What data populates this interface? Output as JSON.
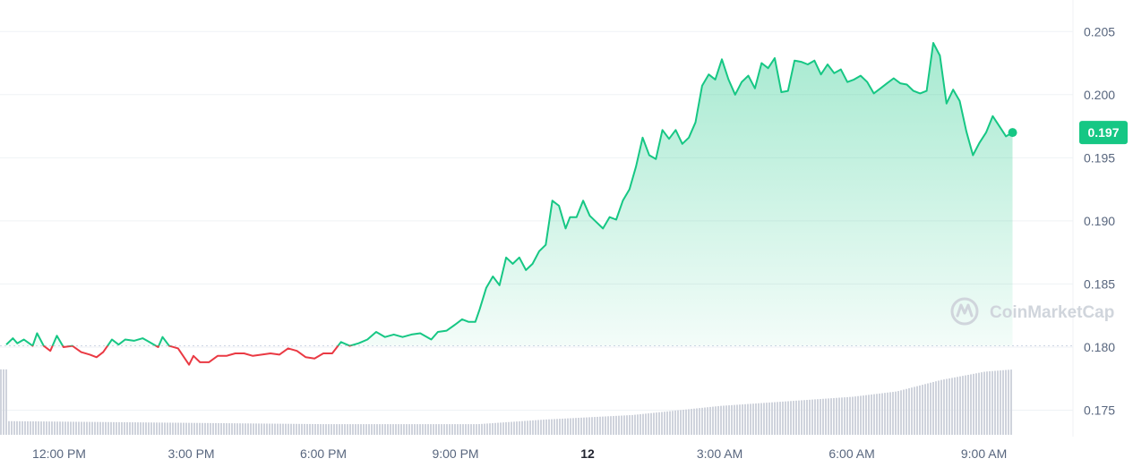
{
  "chart_data": {
    "type": "line",
    "y_ticks": [
      "0.205",
      "0.200",
      "0.195",
      "0.190",
      "0.185",
      "0.180",
      "0.175"
    ],
    "ylim": [
      0.1705,
      0.2075
    ],
    "reference_price": 0.1801,
    "x_ticks": [
      "12:00 PM",
      "3:00 PM",
      "6:00 PM",
      "9:00 PM",
      "12",
      "3:00 AM",
      "6:00 AM",
      "9:00 AM"
    ],
    "x_tick_hours": [
      0,
      3,
      6,
      9,
      12,
      15,
      18,
      21
    ],
    "bold_x_tick": "12",
    "x_start_hour": -1.2,
    "price_series": [
      [
        -1.2,
        0.1802
      ],
      [
        -1.05,
        0.1807
      ],
      [
        -0.95,
        0.1803
      ],
      [
        -0.8,
        0.1806
      ],
      [
        -0.6,
        0.1801
      ],
      [
        -0.5,
        0.1811
      ],
      [
        -0.35,
        0.1801
      ],
      [
        -0.2,
        0.1797
      ],
      [
        -0.05,
        0.1809
      ],
      [
        0.1,
        0.18
      ],
      [
        0.3,
        0.1801
      ],
      [
        0.5,
        0.1796
      ],
      [
        0.7,
        0.1794
      ],
      [
        0.85,
        0.1792
      ],
      [
        1.0,
        0.1796
      ],
      [
        1.2,
        0.1806
      ],
      [
        1.35,
        0.1802
      ],
      [
        1.5,
        0.1806
      ],
      [
        1.7,
        0.1805
      ],
      [
        1.9,
        0.1807
      ],
      [
        2.1,
        0.1803
      ],
      [
        2.25,
        0.18
      ],
      [
        2.35,
        0.1808
      ],
      [
        2.5,
        0.1801
      ],
      [
        2.7,
        0.1799
      ],
      [
        2.95,
        0.1786
      ],
      [
        3.05,
        0.1793
      ],
      [
        3.2,
        0.1788
      ],
      [
        3.4,
        0.1788
      ],
      [
        3.6,
        0.1793
      ],
      [
        3.8,
        0.1793
      ],
      [
        4.0,
        0.1795
      ],
      [
        4.2,
        0.1795
      ],
      [
        4.4,
        0.1793
      ],
      [
        4.6,
        0.1794
      ],
      [
        4.8,
        0.1795
      ],
      [
        5.0,
        0.1794
      ],
      [
        5.2,
        0.1799
      ],
      [
        5.4,
        0.1797
      ],
      [
        5.6,
        0.1792
      ],
      [
        5.8,
        0.1791
      ],
      [
        6.0,
        0.1795
      ],
      [
        6.2,
        0.1795
      ],
      [
        6.4,
        0.1804
      ],
      [
        6.6,
        0.1801
      ],
      [
        6.8,
        0.1803
      ],
      [
        7.0,
        0.1806
      ],
      [
        7.2,
        0.1812
      ],
      [
        7.4,
        0.1808
      ],
      [
        7.6,
        0.181
      ],
      [
        7.8,
        0.1808
      ],
      [
        8.0,
        0.181
      ],
      [
        8.2,
        0.1811
      ],
      [
        8.45,
        0.1806
      ],
      [
        8.6,
        0.1812
      ],
      [
        8.8,
        0.1813
      ],
      [
        9.0,
        0.1818
      ],
      [
        9.15,
        0.1822
      ],
      [
        9.3,
        0.182
      ],
      [
        9.45,
        0.182
      ],
      [
        9.55,
        0.183
      ],
      [
        9.7,
        0.1847
      ],
      [
        9.85,
        0.1856
      ],
      [
        10.0,
        0.1849
      ],
      [
        10.15,
        0.1871
      ],
      [
        10.3,
        0.1866
      ],
      [
        10.45,
        0.1871
      ],
      [
        10.6,
        0.1861
      ],
      [
        10.75,
        0.1866
      ],
      [
        10.9,
        0.1876
      ],
      [
        11.05,
        0.1881
      ],
      [
        11.2,
        0.1916
      ],
      [
        11.35,
        0.1912
      ],
      [
        11.5,
        0.1894
      ],
      [
        11.6,
        0.1903
      ],
      [
        11.75,
        0.1903
      ],
      [
        11.9,
        0.1916
      ],
      [
        12.05,
        0.1904
      ],
      [
        12.2,
        0.1899
      ],
      [
        12.35,
        0.1894
      ],
      [
        12.5,
        0.1903
      ],
      [
        12.65,
        0.1901
      ],
      [
        12.8,
        0.1916
      ],
      [
        12.95,
        0.1925
      ],
      [
        13.1,
        0.1943
      ],
      [
        13.25,
        0.1966
      ],
      [
        13.4,
        0.1952
      ],
      [
        13.55,
        0.1949
      ],
      [
        13.7,
        0.1972
      ],
      [
        13.85,
        0.1965
      ],
      [
        14.0,
        0.1972
      ],
      [
        14.15,
        0.1961
      ],
      [
        14.3,
        0.1966
      ],
      [
        14.45,
        0.1978
      ],
      [
        14.6,
        0.2007
      ],
      [
        14.75,
        0.2016
      ],
      [
        14.9,
        0.2012
      ],
      [
        15.05,
        0.2028
      ],
      [
        15.2,
        0.2012
      ],
      [
        15.35,
        0.2
      ],
      [
        15.5,
        0.201
      ],
      [
        15.65,
        0.2015
      ],
      [
        15.8,
        0.2005
      ],
      [
        15.95,
        0.2025
      ],
      [
        16.1,
        0.2021
      ],
      [
        16.25,
        0.2029
      ],
      [
        16.4,
        0.2002
      ],
      [
        16.55,
        0.2003
      ],
      [
        16.7,
        0.2027
      ],
      [
        16.85,
        0.2026
      ],
      [
        17.0,
        0.2024
      ],
      [
        17.15,
        0.2027
      ],
      [
        17.3,
        0.2016
      ],
      [
        17.45,
        0.2024
      ],
      [
        17.6,
        0.2017
      ],
      [
        17.75,
        0.202
      ],
      [
        17.9,
        0.201
      ],
      [
        18.05,
        0.2012
      ],
      [
        18.2,
        0.2015
      ],
      [
        18.35,
        0.201
      ],
      [
        18.5,
        0.2001
      ],
      [
        18.65,
        0.2005
      ],
      [
        18.8,
        0.2009
      ],
      [
        18.95,
        0.2013
      ],
      [
        19.1,
        0.2009
      ],
      [
        19.25,
        0.2008
      ],
      [
        19.4,
        0.2003
      ],
      [
        19.55,
        0.2001
      ],
      [
        19.7,
        0.2003
      ],
      [
        19.85,
        0.2041
      ],
      [
        20.0,
        0.2031
      ],
      [
        20.15,
        0.1993
      ],
      [
        20.3,
        0.2004
      ],
      [
        20.45,
        0.1995
      ],
      [
        20.6,
        0.1971
      ],
      [
        20.75,
        0.1952
      ],
      [
        20.9,
        0.1962
      ],
      [
        21.05,
        0.197
      ],
      [
        21.2,
        0.1983
      ],
      [
        21.35,
        0.1975
      ],
      [
        21.5,
        0.1967
      ],
      [
        21.65,
        0.197
      ]
    ],
    "colors": {
      "up": "#16c784",
      "down": "#ea3943",
      "fill_top": "#16c784",
      "volume_bar": "#cfd3dc",
      "grid": "#eff2f5",
      "reference_line": "#cfd6e4"
    },
    "volume_levels": [
      [
        -1.2,
        0.18
      ],
      [
        6.0,
        0.14
      ],
      [
        9.5,
        0.14
      ],
      [
        11.0,
        0.2
      ],
      [
        13.0,
        0.26
      ],
      [
        15.0,
        0.38
      ],
      [
        16.5,
        0.44
      ],
      [
        18.0,
        0.5
      ],
      [
        19.0,
        0.57
      ],
      [
        20.0,
        0.72
      ],
      [
        21.0,
        0.83
      ],
      [
        21.65,
        0.86
      ]
    ],
    "current_price": "0.197",
    "watermark": "CoinMarketCap",
    "grid": true,
    "legend": "none"
  }
}
